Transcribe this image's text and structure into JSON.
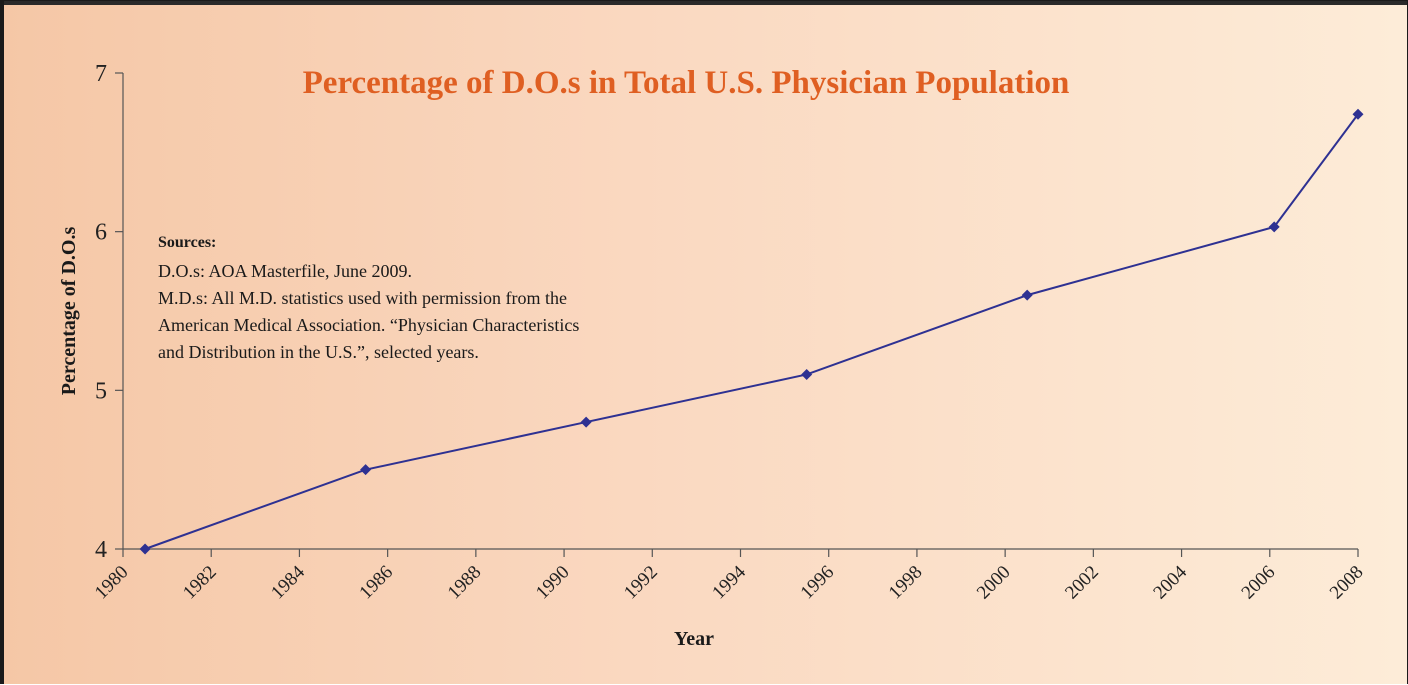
{
  "chart_data": {
    "type": "line",
    "title": "Percentage of D.O.s in Total U.S. Physician Population",
    "xlabel": "Year",
    "ylabel": "Percentage of D.O.s",
    "xlim": [
      1980,
      2008
    ],
    "ylim": [
      4,
      7
    ],
    "x_ticks": [
      "1980",
      "1982",
      "1984",
      "1986",
      "1988",
      "1990",
      "1992",
      "1994",
      "1996",
      "1998",
      "2000",
      "2002",
      "2004",
      "2006",
      "2008"
    ],
    "y_ticks": [
      "4",
      "5",
      "6",
      "7"
    ],
    "grid": false,
    "series": [
      {
        "x": [
          1980.5,
          1985.5,
          1990.5,
          1995.5,
          2000.5,
          2006.1,
          2008
        ],
        "y": [
          4.0,
          4.5,
          4.8,
          5.1,
          5.6,
          6.03,
          6.74
        ]
      }
    ],
    "colors": {
      "line": "#2e3192",
      "title": "#df5f22"
    },
    "annotation": {
      "heading": "Sources:",
      "lines": [
        "D.O.s: AOA Masterfile, June 2009.",
        "M.D.s: All M.D. statistics used with permission from the",
        "American Medical Association. “Physician Characteristics",
        "and Distribution in the U.S.”, selected years."
      ]
    }
  }
}
